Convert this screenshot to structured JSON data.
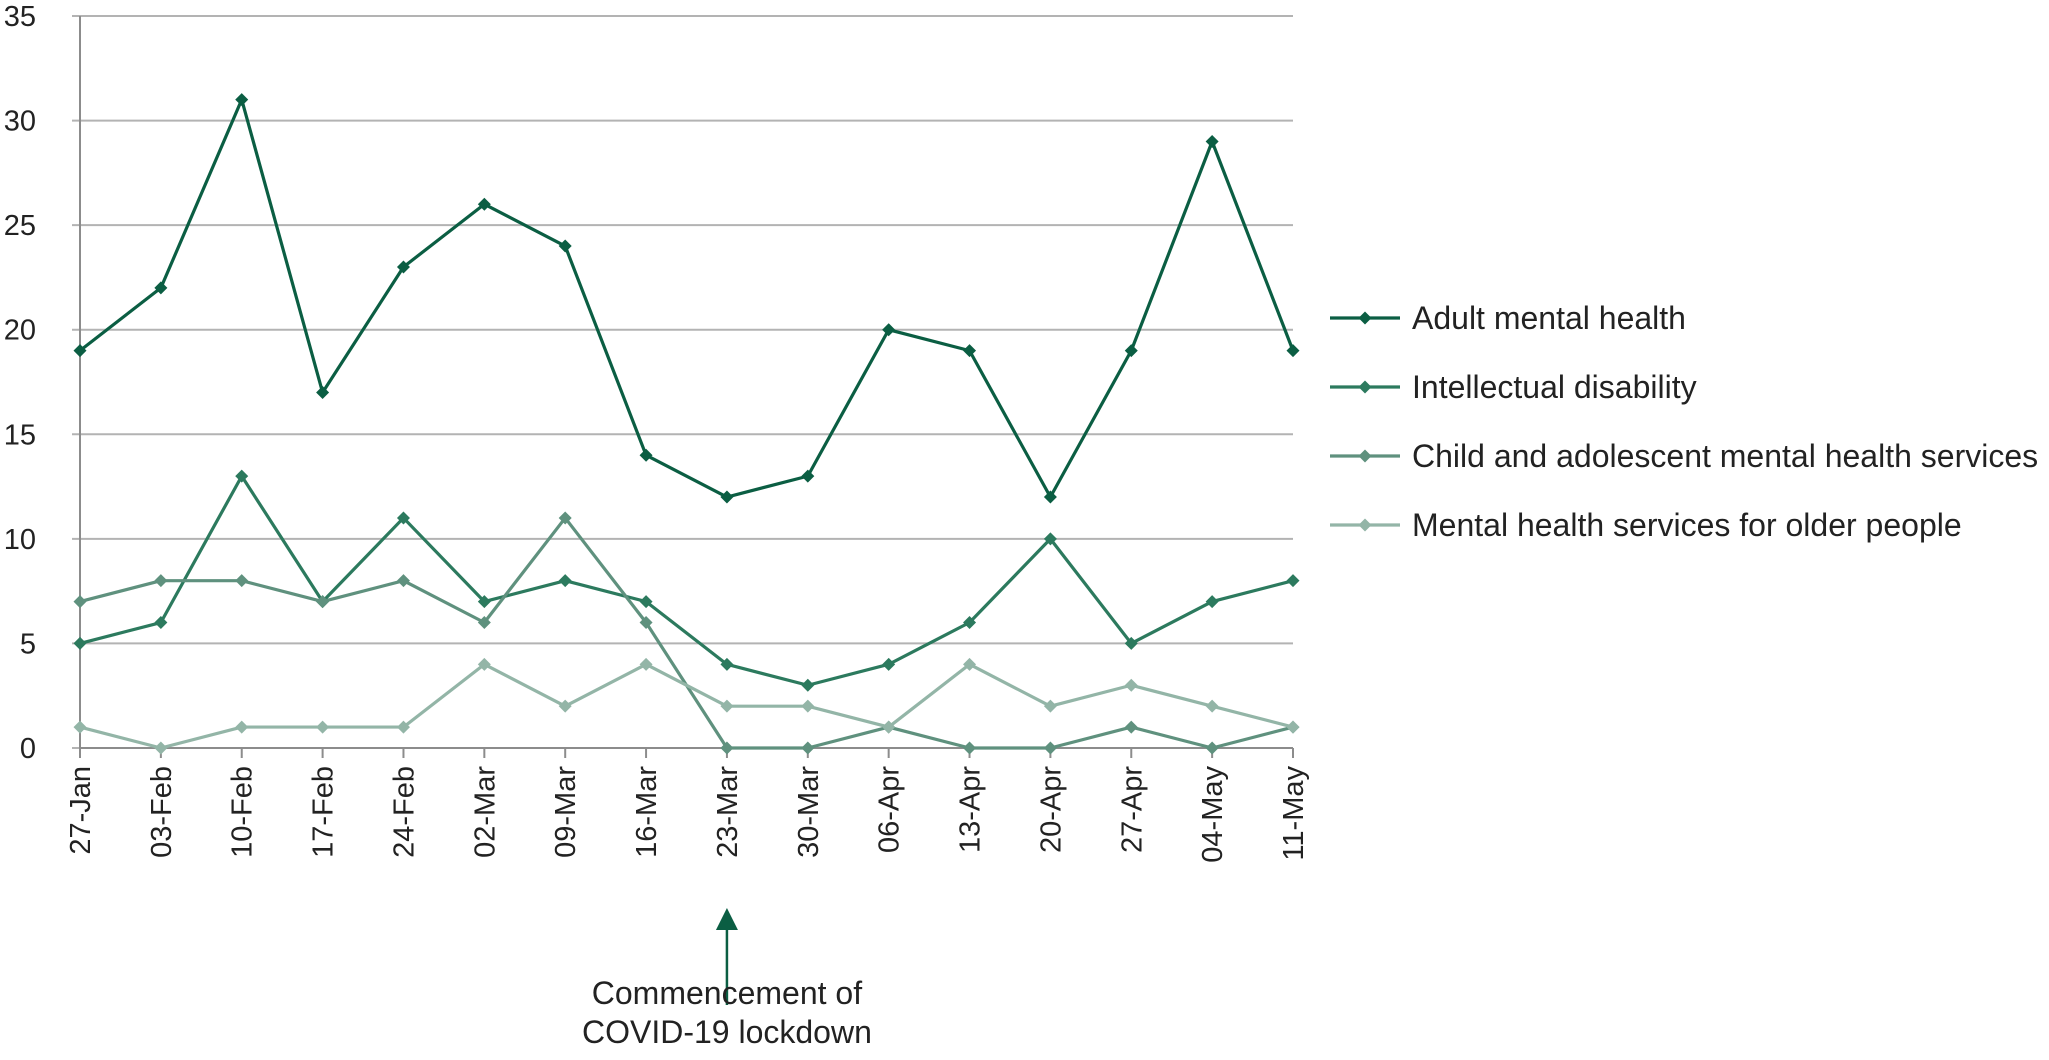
{
  "chart_data": {
    "type": "line",
    "categories": [
      "27-Jan",
      "03-Feb",
      "10-Feb",
      "17-Feb",
      "24-Feb",
      "02-Mar",
      "09-Mar",
      "16-Mar",
      "23-Mar",
      "30-Mar",
      "06-Apr",
      "13-Apr",
      "20-Apr",
      "27-Apr",
      "04-May",
      "11-May"
    ],
    "yticks": [
      0,
      5,
      10,
      15,
      20,
      25,
      30,
      35
    ],
    "ylim": [
      0,
      35
    ],
    "grid": true,
    "legend_position": "right",
    "series": [
      {
        "name": "Adult mental health",
        "color": "#0b5e43",
        "values": [
          19,
          22,
          31,
          17,
          23,
          26,
          24,
          14,
          12,
          13,
          20,
          19,
          12,
          19,
          29,
          19
        ]
      },
      {
        "name": "Intellectual disability",
        "color": "#2c7a5e",
        "values": [
          5,
          6,
          13,
          7,
          11,
          7,
          8,
          7,
          4,
          3,
          4,
          6,
          10,
          5,
          7,
          8
        ]
      },
      {
        "name": "Child and adolescent mental health services",
        "color": "#5f917e",
        "values": [
          7,
          8,
          8,
          7,
          8,
          6,
          11,
          6,
          0,
          0,
          1,
          0,
          0,
          1,
          0,
          1
        ]
      },
      {
        "name": "Mental health services for older people",
        "color": "#93b5a7",
        "values": [
          1,
          0,
          1,
          1,
          1,
          4,
          2,
          4,
          2,
          2,
          1,
          4,
          2,
          3,
          2,
          1
        ]
      }
    ],
    "annotation": {
      "line1": "Commencement of",
      "line2": "COVID-19 lockdown",
      "category": "23-Mar",
      "color": "#0b5e43"
    }
  }
}
